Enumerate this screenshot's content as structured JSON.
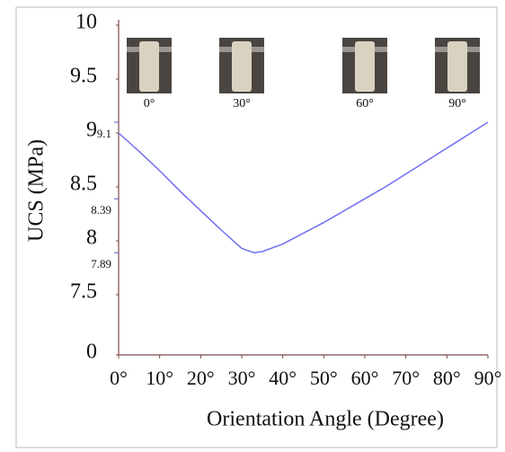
{
  "chart_data": {
    "type": "line",
    "x_label": "Orientation Angle (Degree)",
    "y_label": "UCS (MPa)",
    "x": [
      0,
      5,
      10,
      15,
      20,
      25,
      30,
      33,
      35,
      40,
      45,
      50,
      55,
      60,
      65,
      70,
      75,
      80,
      85,
      90
    ],
    "series": [
      {
        "color": "#6f6ff0",
        "values": [
          9.0,
          8.83,
          8.65,
          8.46,
          8.28,
          8.1,
          7.93,
          7.89,
          7.9,
          7.97,
          8.07,
          8.17,
          8.28,
          8.39,
          8.5,
          8.62,
          8.74,
          8.86,
          8.98,
          9.1
        ]
      }
    ],
    "xlim": [
      0,
      90
    ],
    "xticks": [
      {
        "value": 0,
        "label": "0°"
      },
      {
        "value": 10,
        "label": "10°"
      },
      {
        "value": 20,
        "label": "20°"
      },
      {
        "value": 30,
        "label": "30°"
      },
      {
        "value": 40,
        "label": "40°"
      },
      {
        "value": 50,
        "label": "50°"
      },
      {
        "value": 60,
        "label": "60°"
      },
      {
        "value": 70,
        "label": "70°"
      },
      {
        "value": 80,
        "label": "80°"
      },
      {
        "value": 90,
        "label": "90°"
      }
    ],
    "ylim": [
      7,
      10
    ],
    "axis_break": true,
    "yticks": [
      0,
      7.5,
      8,
      8.5,
      9,
      9.5,
      10
    ],
    "annotations": [
      {
        "text": "9.1",
        "value": 9.1
      },
      {
        "text": "8.39",
        "value": 8.39
      },
      {
        "text": "7.89",
        "value": 7.89
      }
    ],
    "insets": [
      {
        "label": "0°",
        "x": 0
      },
      {
        "label": "30°",
        "x": 30
      },
      {
        "label": "60°",
        "x": 60
      },
      {
        "label": "90°",
        "x": 90
      }
    ]
  }
}
